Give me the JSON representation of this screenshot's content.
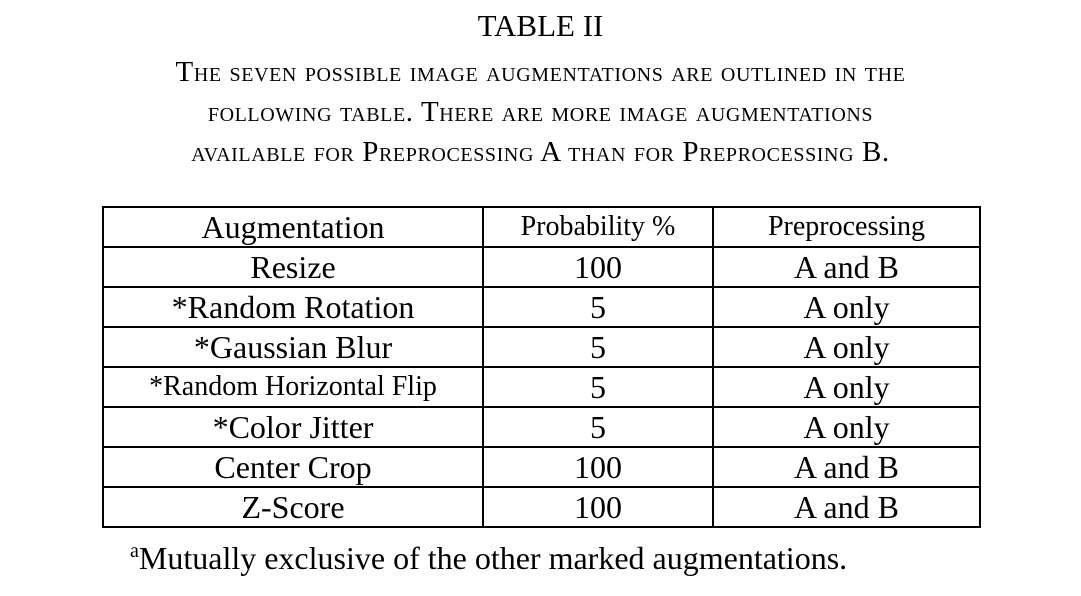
{
  "table_label": "TABLE II",
  "caption_lines": [
    "The seven possible image augmentations are outlined in the",
    "following table. There are more image augmentations",
    "available for Preprocessing A than for Preprocessing B."
  ],
  "headers": [
    "Augmentation",
    "Probability %",
    "Preprocessing"
  ],
  "rows": [
    {
      "augmentation": "Resize",
      "probability": "100",
      "preprocessing": "A and B"
    },
    {
      "augmentation": "*Random Rotation",
      "probability": "5",
      "preprocessing": "A only"
    },
    {
      "augmentation": "*Gaussian Blur",
      "probability": "5",
      "preprocessing": "A only"
    },
    {
      "augmentation": "*Random Horizontal Flip",
      "probability": "5",
      "preprocessing": "A only"
    },
    {
      "augmentation": "*Color Jitter",
      "probability": "5",
      "preprocessing": "A only"
    },
    {
      "augmentation": "Center Crop",
      "probability": "100",
      "preprocessing": "A and B"
    },
    {
      "augmentation": "Z-Score",
      "probability": "100",
      "preprocessing": "A and B"
    }
  ],
  "footnote": {
    "marker": "a",
    "text": "Mutually exclusive of the other marked augmentations."
  }
}
